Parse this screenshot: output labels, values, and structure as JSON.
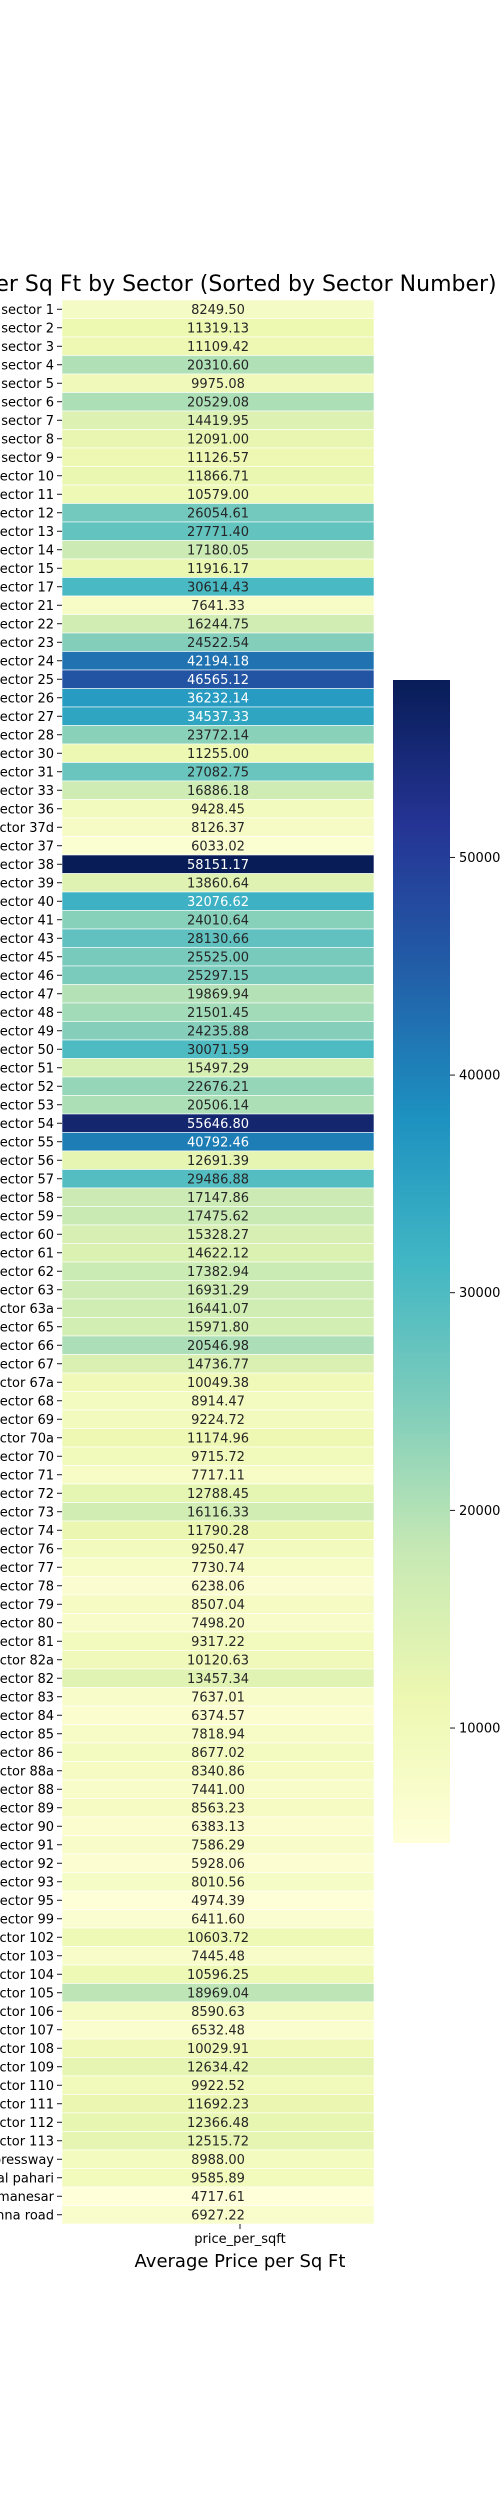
{
  "chart_data": {
    "type": "heatmap",
    "title": "Average Price per Sq Ft by Sector (Sorted by Sector Number)",
    "xlabel": "Average Price per Sq Ft",
    "ylabel": "",
    "column_label": "price_per_sqft",
    "colormap": "YlGnBu",
    "color_range": [
      4717.61,
      58151.17
    ],
    "colorbar_ticks": [
      10000,
      20000,
      30000,
      40000,
      50000
    ],
    "rows": [
      [
        "sector 1",
        8249.5
      ],
      [
        "sector 2",
        11319.13
      ],
      [
        "sector 3",
        11109.42
      ],
      [
        "sector 4",
        20310.6
      ],
      [
        "sector 5",
        9975.08
      ],
      [
        "sector 6",
        20529.08
      ],
      [
        "sector 7",
        14419.95
      ],
      [
        "sector 8",
        12091.0
      ],
      [
        "sector 9",
        11126.57
      ],
      [
        "sector 10",
        11866.71
      ],
      [
        "sector 11",
        10579.0
      ],
      [
        "sector 12",
        26054.61
      ],
      [
        "sector 13",
        27771.4
      ],
      [
        "sector 14",
        17180.05
      ],
      [
        "sector 15",
        11916.17
      ],
      [
        "sector 17",
        30614.43
      ],
      [
        "sector 21",
        7641.33
      ],
      [
        "sector 22",
        16244.75
      ],
      [
        "sector 23",
        24522.54
      ],
      [
        "sector 24",
        42194.18
      ],
      [
        "sector 25",
        46565.12
      ],
      [
        "sector 26",
        36232.14
      ],
      [
        "sector 27",
        34537.33
      ],
      [
        "sector 28",
        23772.14
      ],
      [
        "sector 30",
        11255.0
      ],
      [
        "sector 31",
        27082.75
      ],
      [
        "sector 33",
        16886.18
      ],
      [
        "sector 36",
        9428.45
      ],
      [
        "sector 37d",
        8126.37
      ],
      [
        "sector 37",
        6033.02
      ],
      [
        "sector 38",
        58151.17
      ],
      [
        "sector 39",
        13860.64
      ],
      [
        "sector 40",
        32076.62
      ],
      [
        "sector 41",
        24010.64
      ],
      [
        "sector 43",
        28130.66
      ],
      [
        "sector 45",
        25525.0
      ],
      [
        "sector 46",
        25297.15
      ],
      [
        "sector 47",
        19869.94
      ],
      [
        "sector 48",
        21501.45
      ],
      [
        "sector 49",
        24235.88
      ],
      [
        "sector 50",
        30071.59
      ],
      [
        "sector 51",
        15497.29
      ],
      [
        "sector 52",
        22676.21
      ],
      [
        "sector 53",
        20506.14
      ],
      [
        "sector 54",
        55646.8
      ],
      [
        "sector 55",
        40792.46
      ],
      [
        "sector 56",
        12691.39
      ],
      [
        "sector 57",
        29486.88
      ],
      [
        "sector 58",
        17147.86
      ],
      [
        "sector 59",
        17475.62
      ],
      [
        "sector 60",
        15328.27
      ],
      [
        "sector 61",
        14622.12
      ],
      [
        "sector 62",
        17382.94
      ],
      [
        "sector 63",
        16931.29
      ],
      [
        "sector 63a",
        16441.07
      ],
      [
        "sector 65",
        15971.8
      ],
      [
        "sector 66",
        20546.98
      ],
      [
        "sector 67",
        14736.77
      ],
      [
        "sector 67a",
        10049.38
      ],
      [
        "sector 68",
        8914.47
      ],
      [
        "sector 69",
        9224.72
      ],
      [
        "sector 70a",
        11174.96
      ],
      [
        "sector 70",
        9715.72
      ],
      [
        "sector 71",
        7717.11
      ],
      [
        "sector 72",
        12788.45
      ],
      [
        "sector 73",
        16116.33
      ],
      [
        "sector 74",
        11790.28
      ],
      [
        "sector 76",
        9250.47
      ],
      [
        "sector 77",
        7730.74
      ],
      [
        "sector 78",
        6238.06
      ],
      [
        "sector 79",
        8507.04
      ],
      [
        "sector 80",
        7498.2
      ],
      [
        "sector 81",
        9317.22
      ],
      [
        "sector 82a",
        10120.63
      ],
      [
        "sector 82",
        13457.34
      ],
      [
        "sector 83",
        7637.01
      ],
      [
        "sector 84",
        6374.57
      ],
      [
        "sector 85",
        7818.94
      ],
      [
        "sector 86",
        8677.02
      ],
      [
        "sector 88a",
        8340.86
      ],
      [
        "sector 88",
        7441.0
      ],
      [
        "sector 89",
        8563.23
      ],
      [
        "sector 90",
        6383.13
      ],
      [
        "sector 91",
        7586.29
      ],
      [
        "sector 92",
        5928.06
      ],
      [
        "sector 93",
        8010.56
      ],
      [
        "sector 95",
        4974.39
      ],
      [
        "sector 99",
        6411.6
      ],
      [
        "sector 102",
        10603.72
      ],
      [
        "sector 103",
        7445.48
      ],
      [
        "sector 104",
        10596.25
      ],
      [
        "sector 105",
        18969.04
      ],
      [
        "sector 106",
        8590.63
      ],
      [
        "sector 107",
        6532.48
      ],
      [
        "sector 108",
        10029.91
      ],
      [
        "sector 109",
        12634.42
      ],
      [
        "sector 110",
        9922.52
      ],
      [
        "sector 111",
        11692.23
      ],
      [
        "sector 112",
        12366.48
      ],
      [
        "sector 113",
        12515.72
      ],
      [
        "dwarka expressway",
        8988.0
      ],
      [
        "sohna road sohna road gwal pahari",
        9585.89
      ],
      [
        "manesar",
        4717.61
      ],
      [
        "sohna road",
        6927.22
      ]
    ]
  }
}
